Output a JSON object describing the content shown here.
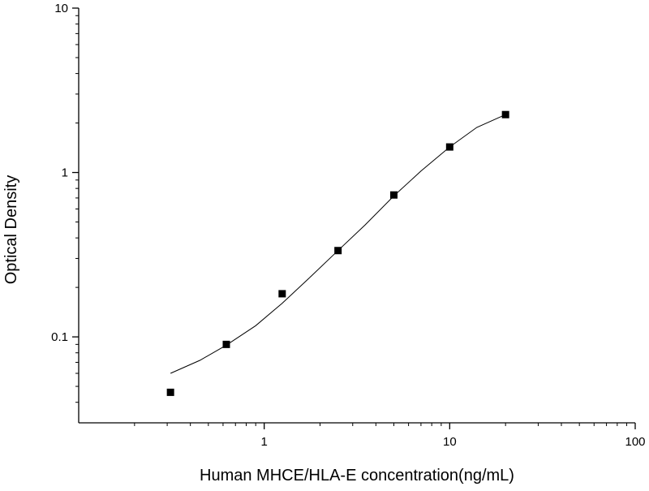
{
  "chart_data": {
    "type": "scatter",
    "xlabel": "Human MHCE/HLA-E concentration(ng/mL)",
    "ylabel": "Optical Density",
    "x_scale": "log",
    "y_scale": "log",
    "xlim": [
      0.1,
      100
    ],
    "ylim": [
      0.03,
      10
    ],
    "x_ticks": [
      {
        "value": 1,
        "label": "1"
      },
      {
        "value": 10,
        "label": "10"
      },
      {
        "value": 100,
        "label": "100"
      }
    ],
    "y_ticks": [
      {
        "value": 0.1,
        "label": "0.1"
      },
      {
        "value": 1,
        "label": "1"
      },
      {
        "value": 10,
        "label": "10"
      }
    ],
    "grid": false,
    "legend": false,
    "series": [
      {
        "style": "markers",
        "marker": "square",
        "color": "#000000",
        "points": [
          {
            "x": 0.3125,
            "y": 0.046
          },
          {
            "x": 0.625,
            "y": 0.09
          },
          {
            "x": 1.25,
            "y": 0.183
          },
          {
            "x": 2.5,
            "y": 0.335
          },
          {
            "x": 5,
            "y": 0.73
          },
          {
            "x": 10,
            "y": 1.43
          },
          {
            "x": 20,
            "y": 2.25
          }
        ]
      },
      {
        "style": "line",
        "color": "#000000",
        "points": [
          {
            "x": 0.3125,
            "y": 0.06
          },
          {
            "x": 0.45,
            "y": 0.072
          },
          {
            "x": 0.625,
            "y": 0.089
          },
          {
            "x": 0.9,
            "y": 0.117
          },
          {
            "x": 1.25,
            "y": 0.16
          },
          {
            "x": 1.8,
            "y": 0.235
          },
          {
            "x": 2.5,
            "y": 0.335
          },
          {
            "x": 3.5,
            "y": 0.48
          },
          {
            "x": 5,
            "y": 0.72
          },
          {
            "x": 7,
            "y": 1.02
          },
          {
            "x": 10,
            "y": 1.43
          },
          {
            "x": 14,
            "y": 1.88
          },
          {
            "x": 20,
            "y": 2.25
          }
        ]
      }
    ]
  }
}
